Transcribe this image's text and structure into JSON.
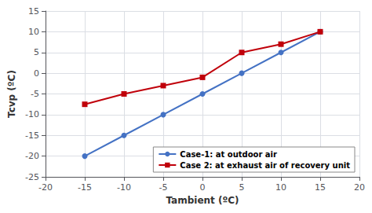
{
  "chart_data": {
    "type": "line",
    "xlabel": "Tambient (ºC)",
    "ylabel": "Tcvp (ºC)",
    "x": [
      -15,
      -10,
      -5,
      0,
      5,
      10,
      15
    ],
    "series": [
      {
        "name": "Case-1: at outdoor air",
        "color": "#4472c4",
        "marker": "circle",
        "values": [
          -20,
          -15,
          -10,
          -5,
          0,
          5,
          10
        ]
      },
      {
        "name": "Case 2: at exhaust air of recovery unit",
        "color": "#c0000a",
        "marker": "square",
        "values": [
          -7.5,
          -5,
          -3,
          -1,
          5,
          7,
          10
        ]
      }
    ],
    "xlim": [
      -20,
      20
    ],
    "ylim": [
      -25,
      15
    ],
    "xticks": [
      -20,
      -15,
      -10,
      -5,
      0,
      5,
      10,
      15,
      20
    ],
    "yticks": [
      -25,
      -20,
      -15,
      -10,
      -5,
      0,
      5,
      10,
      15
    ],
    "grid": true,
    "legend": "lower right"
  }
}
